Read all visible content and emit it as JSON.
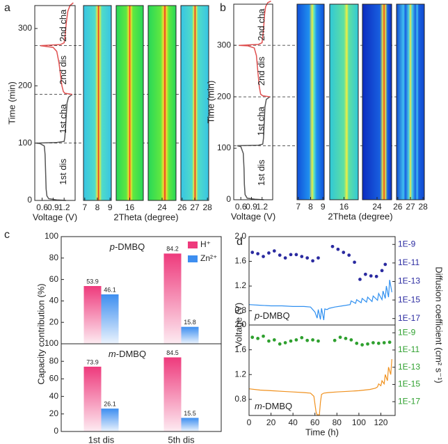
{
  "panels": [
    "a",
    "b",
    "c",
    "d"
  ],
  "chart_data": [
    {
      "type": "line",
      "orientation": "vertical",
      "xlabel": "Voltage (V)",
      "ylabel": "Time (min)",
      "xlim": [
        0.4,
        1.5
      ],
      "xticks": [
        0.6,
        0.9,
        1.2
      ],
      "ylim": [
        0,
        340
      ],
      "yticks": [
        0,
        100,
        200,
        300
      ],
      "dividers": [
        100,
        185,
        270
      ],
      "annotations": [
        "1st dis",
        "1st cha",
        "2nd dis",
        "2nd cha"
      ],
      "series": [
        {
          "color": "#555555",
          "y": [
            0,
            1,
            3,
            8,
            20,
            40,
            60,
            80,
            95,
            99,
            100,
            101,
            103,
            110,
            130,
            150,
            170,
            180,
            185
          ],
          "values": [
            1.25,
            1.0,
            0.78,
            0.73,
            0.71,
            0.7,
            0.69,
            0.68,
            0.66,
            0.55,
            0.45,
            1.0,
            1.2,
            1.22,
            1.24,
            1.26,
            1.28,
            1.32,
            1.42
          ]
        },
        {
          "color": "#e05050",
          "y": [
            185,
            187,
            190,
            200,
            220,
            240,
            260,
            267,
            270,
            272,
            275,
            290,
            310,
            330,
            340,
            345
          ],
          "values": [
            1.42,
            1.22,
            1.18,
            1.14,
            1.1,
            1.06,
            1.0,
            0.9,
            0.55,
            1.1,
            1.2,
            1.23,
            1.26,
            1.3,
            1.36,
            1.45
          ]
        }
      ]
    },
    {
      "type": "heatmap",
      "xlim": [
        6.9,
        9.1
      ],
      "xticks": [
        7,
        8,
        9
      ]
    },
    {
      "type": "heatmap",
      "xlim": [
        15,
        17
      ],
      "xticks": [
        16
      ],
      "xlabel": "2Theta (degree)"
    },
    {
      "type": "heatmap",
      "xlim": [
        23,
        25
      ],
      "xticks": [
        24
      ]
    },
    {
      "type": "heatmap",
      "xlim": [
        25.9,
        28.1
      ],
      "xticks": [
        26,
        27,
        28
      ]
    },
    {
      "type": "line",
      "orientation": "vertical",
      "xlabel": "Voltage (V)",
      "ylabel": "Time (min)",
      "xlim": [
        0.4,
        1.5
      ],
      "xticks": [
        0.6,
        0.9,
        1.2
      ],
      "ylim": [
        0,
        380
      ],
      "yticks": [
        0,
        100,
        200,
        300
      ],
      "dividers": [
        105,
        200,
        300
      ],
      "annotations": [
        "1st dis",
        "1st cha",
        "2nd dis",
        "2nd cha"
      ],
      "series": [
        {
          "color": "#555555",
          "y": [
            0,
            1,
            3,
            10,
            30,
            60,
            90,
            103,
            105,
            106,
            108,
            120,
            150,
            180,
            195,
            200
          ],
          "values": [
            1.25,
            1.0,
            0.78,
            0.72,
            0.7,
            0.69,
            0.67,
            0.6,
            0.5,
            1.1,
            1.22,
            1.24,
            1.26,
            1.28,
            1.32,
            1.42
          ]
        },
        {
          "color": "#e05050",
          "y": [
            200,
            202,
            205,
            220,
            250,
            280,
            295,
            299,
            300,
            302,
            305,
            330,
            360,
            375,
            383,
            386
          ],
          "values": [
            1.42,
            1.22,
            1.16,
            1.12,
            1.08,
            1.04,
            0.98,
            0.8,
            0.55,
            1.1,
            1.2,
            1.24,
            1.27,
            1.3,
            1.36,
            1.45
          ]
        }
      ]
    },
    {
      "type": "heatmap",
      "xlim": [
        6.9,
        9.1
      ],
      "xticks": [
        7,
        8,
        9
      ]
    },
    {
      "type": "heatmap",
      "xlim": [
        15,
        17
      ],
      "xticks": [
        16
      ],
      "xlabel": "2Theta (degree)"
    },
    {
      "type": "heatmap",
      "xlim": [
        23,
        25
      ],
      "xticks": [
        24
      ]
    },
    {
      "type": "heatmap",
      "xlim": [
        25.9,
        28.1
      ],
      "xticks": [
        26,
        27,
        28
      ]
    },
    {
      "type": "bar",
      "ylabel": "Capacity contribution (%)",
      "ylim": [
        0,
        100
      ],
      "yticks": [
        20,
        40,
        60,
        80,
        100
      ],
      "annotation": "p-DMBQ",
      "series": [
        {
          "name": "H⁺",
          "color": "#ee3a7c",
          "values": [
            53.9,
            84.2
          ]
        },
        {
          "name": "Zn²⁺",
          "color": "#3d8ef0",
          "values": [
            46.1,
            15.8
          ]
        }
      ]
    },
    {
      "type": "bar",
      "ylim": [
        0,
        100
      ],
      "yticks": [
        0,
        20,
        40,
        60,
        80,
        100
      ],
      "categories": [
        "1st dis",
        "5th dis"
      ],
      "annotation": "m-DMBQ",
      "series": [
        {
          "color": "#ee3a7c",
          "values": [
            73.9,
            84.5
          ]
        },
        {
          "color": "#3d8ef0",
          "values": [
            26.1,
            15.5
          ]
        }
      ]
    },
    {
      "type": "line",
      "ylabel": "Voltage (V)",
      "y2label": "Diffusion coefficient (cm² s⁻¹)",
      "annotation": "p-DMBQ",
      "xlim": [
        0,
        133
      ],
      "ylim": [
        0.57,
        2.0
      ],
      "yticks": [
        0.8,
        1.2,
        1.6,
        {
          "value": 2,
          "label": "2.0"
        }
      ],
      "y2log": true,
      "y2lim": [
        2e-18,
        7e-09
      ],
      "y2ticks": [
        {
          "value": 1e-09,
          "label": "1E-9"
        },
        {
          "value": 1e-11,
          "label": "1E-11"
        },
        {
          "value": 1e-13,
          "label": "1E-13"
        },
        {
          "value": 1e-15,
          "label": "1E-15"
        },
        {
          "value": 1e-17,
          "label": "1E-17"
        }
      ],
      "series": [
        {
          "color": "#2e8ff0",
          "x": [
            0,
            10,
            20,
            30,
            40,
            50,
            56,
            60,
            62,
            63,
            65,
            66,
            68,
            69,
            71,
            73,
            78,
            85,
            92,
            93,
            97,
            98,
            102,
            103,
            107,
            108,
            112,
            113,
            117,
            118,
            121,
            122,
            124,
            125,
            127,
            128,
            130
          ],
          "values": [
            0.9,
            0.89,
            0.88,
            0.88,
            0.87,
            0.87,
            0.86,
            0.78,
            0.68,
            0.82,
            0.66,
            0.84,
            0.65,
            0.83,
            0.82,
            0.84,
            0.86,
            0.88,
            0.9,
            0.96,
            0.92,
            0.98,
            0.93,
            1.0,
            0.94,
            1.02,
            0.95,
            1.04,
            0.97,
            1.08,
            0.98,
            1.12,
            1.0,
            1.2,
            1.02,
            1.3,
            1.1
          ]
        },
        {
          "color": "#2a2aa0",
          "axis": "y2",
          "x": [
            3,
            8,
            13,
            18,
            23,
            28,
            33,
            38,
            43,
            48,
            53,
            58,
            63,
            76,
            81,
            86,
            91,
            96,
            101,
            106,
            111,
            116,
            121,
            124
          ],
          "values": [
            1.4e-10,
            1e-10,
            5e-11,
            1.2e-10,
            2e-10,
            7e-11,
            3.5e-11,
            8e-11,
            8e-11,
            5e-11,
            3.5e-11,
            1.7e-11,
            3.5e-11,
            6e-10,
            3e-10,
            1.4e-10,
            7e-11,
            1.2e-11,
            1.7e-13,
            6e-13,
            4e-13,
            3.5e-13,
            1.5e-12,
            7e-12
          ]
        }
      ]
    },
    {
      "type": "line",
      "xlabel": "Time (h)",
      "annotation": "m-DMBQ",
      "xlim": [
        0,
        133
      ],
      "xticks": [
        0,
        20,
        40,
        60,
        80,
        100,
        120
      ],
      "ylim": [
        0.54,
        2.0
      ],
      "yticks": [
        0.8,
        1.2,
        1.6,
        {
          "value": 2,
          "label": "2.0"
        }
      ],
      "y2log": true,
      "y2lim": [
        2.5e-19,
        8e-09
      ],
      "y2ticks": [
        {
          "value": 1e-09,
          "label": "1E-9"
        },
        {
          "value": 1e-11,
          "label": "1E-11"
        },
        {
          "value": 1e-13,
          "label": "1E-13"
        },
        {
          "value": 1e-15,
          "label": "1E-15"
        },
        {
          "value": 1e-17,
          "label": "1E-17"
        }
      ],
      "series": [
        {
          "color": "#f0901c",
          "x": [
            0,
            10,
            20,
            30,
            40,
            50,
            56,
            59,
            61,
            62,
            64,
            65,
            66,
            68,
            72,
            80,
            90,
            100,
            110,
            115,
            117,
            118,
            120,
            121,
            123,
            124,
            126,
            127,
            129,
            130
          ],
          "values": [
            0.97,
            0.95,
            0.94,
            0.93,
            0.92,
            0.91,
            0.9,
            0.85,
            0.6,
            0.55,
            0.55,
            0.75,
            0.88,
            0.9,
            0.91,
            0.92,
            0.93,
            0.94,
            0.96,
            0.98,
            1.0,
            1.05,
            1.02,
            1.1,
            1.05,
            1.2,
            1.1,
            1.32,
            1.2,
            1.45
          ]
        },
        {
          "color": "#2ea02e",
          "axis": "y2",
          "x": [
            3,
            8,
            13,
            18,
            23,
            28,
            33,
            38,
            43,
            48,
            53,
            58,
            63,
            78,
            83,
            88,
            93,
            98,
            103,
            108,
            113,
            118,
            123,
            128
          ],
          "values": [
            3e-10,
            2.2e-10,
            4e-10,
            1.1e-10,
            1.5e-10,
            5e-11,
            7e-11,
            1.1e-10,
            1.5e-10,
            2.7e-10,
            1.3e-10,
            1.5e-10,
            1.1e-10,
            1.3e-10,
            3e-10,
            2.2e-10,
            1.5e-10,
            6e-11,
            4e-11,
            5e-11,
            7e-11,
            6e-11,
            7e-11,
            8e-11
          ]
        }
      ]
    }
  ]
}
